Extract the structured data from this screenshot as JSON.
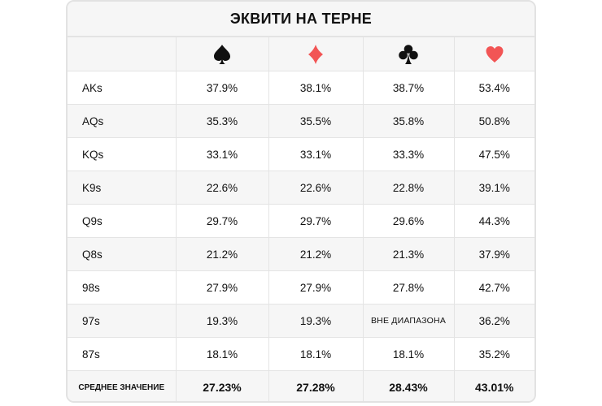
{
  "title": "ЭКВИТИ НА ТЕРНЕ",
  "suits": [
    {
      "icon": "spade-icon",
      "color": "#111111"
    },
    {
      "icon": "diamond-icon",
      "color": "#f25555"
    },
    {
      "icon": "club-icon",
      "color": "#111111"
    },
    {
      "icon": "heart-icon",
      "color": "#f25555"
    }
  ],
  "rows": [
    {
      "hand": "AKs",
      "values": [
        "37.9%",
        "38.1%",
        "38.7%",
        "53.4%"
      ]
    },
    {
      "hand": "AQs",
      "values": [
        "35.3%",
        "35.5%",
        "35.8%",
        "50.8%"
      ]
    },
    {
      "hand": "KQs",
      "values": [
        "33.1%",
        "33.1%",
        "33.3%",
        "47.5%"
      ]
    },
    {
      "hand": "K9s",
      "values": [
        "22.6%",
        "22.6%",
        "22.8%",
        "39.1%"
      ]
    },
    {
      "hand": "Q9s",
      "values": [
        "29.7%",
        "29.7%",
        "29.6%",
        "44.3%"
      ]
    },
    {
      "hand": "Q8s",
      "values": [
        "21.2%",
        "21.2%",
        "21.3%",
        "37.9%"
      ]
    },
    {
      "hand": "98s",
      "values": [
        "27.9%",
        "27.9%",
        "27.8%",
        "42.7%"
      ]
    },
    {
      "hand": "97s",
      "values": [
        "19.3%",
        "19.3%",
        "ВНЕ ДИАПАЗОНА",
        "36.2%"
      ]
    },
    {
      "hand": "87s",
      "values": [
        "18.1%",
        "18.1%",
        "18.1%",
        "35.2%"
      ]
    }
  ],
  "footer": {
    "label": "СРЕДНЕЕ ЗНАЧЕНИЕ",
    "values": [
      "27.23%",
      "27.28%",
      "28.43%",
      "43.01%"
    ]
  }
}
